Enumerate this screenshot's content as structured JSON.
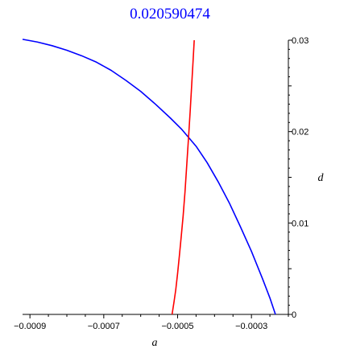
{
  "chart_data": {
    "type": "line",
    "title": "0.020590474",
    "xlabel": "a",
    "ylabel": "d",
    "xlim": [
      -0.00092,
      -0.0002
    ],
    "ylim": [
      0,
      0.03
    ],
    "grid": false,
    "x_ticks": [
      {
        "value": -0.0009,
        "label": "−0.0009"
      },
      {
        "value": -0.0007,
        "label": "−0.0007"
      },
      {
        "value": -0.0005,
        "label": "−0.0005"
      },
      {
        "value": -0.0003,
        "label": "−0.0003"
      }
    ],
    "y_ticks": [
      {
        "value": 0,
        "label": "0"
      },
      {
        "value": 0.01,
        "label": "0.01"
      },
      {
        "value": 0.02,
        "label": "0.02"
      },
      {
        "value": 0.03,
        "label": "0.03"
      }
    ],
    "series": [
      {
        "color": "#0000ff",
        "points": [
          [
            -0.00092,
            0.0301
          ],
          [
            -0.00088,
            0.0298
          ],
          [
            -0.00084,
            0.0294
          ],
          [
            -0.0008,
            0.0289
          ],
          [
            -0.00076,
            0.0283
          ],
          [
            -0.00072,
            0.0276
          ],
          [
            -0.00068,
            0.0267
          ],
          [
            -0.00064,
            0.0256
          ],
          [
            -0.0006,
            0.0244
          ],
          [
            -0.00056,
            0.023
          ],
          [
            -0.00052,
            0.0215
          ],
          [
            -0.00049,
            0.0203
          ],
          [
            -0.00045,
            0.0184
          ],
          [
            -0.00042,
            0.0166
          ],
          [
            -0.00039,
            0.0145
          ],
          [
            -0.00036,
            0.0122
          ],
          [
            -0.00033,
            0.0096
          ],
          [
            -0.0003,
            0.0069
          ],
          [
            -0.00027,
            0.0039
          ],
          [
            -0.00025,
            0.0018
          ],
          [
            -0.000235,
            0.0
          ]
        ]
      },
      {
        "color": "#ff0000",
        "points": [
          [
            -0.000515,
            0.0
          ],
          [
            -0.00051,
            0.0013
          ],
          [
            -0.000505,
            0.0027
          ],
          [
            -0.0005,
            0.0045
          ],
          [
            -0.000495,
            0.0065
          ],
          [
            -0.00049,
            0.0086
          ],
          [
            -0.000485,
            0.0108
          ],
          [
            -0.00048,
            0.0134
          ],
          [
            -0.000475,
            0.0165
          ],
          [
            -0.00047,
            0.0196
          ],
          [
            -0.000466,
            0.0222
          ],
          [
            -0.000462,
            0.025
          ],
          [
            -0.000458,
            0.0278
          ],
          [
            -0.000455,
            0.03
          ]
        ]
      }
    ]
  }
}
